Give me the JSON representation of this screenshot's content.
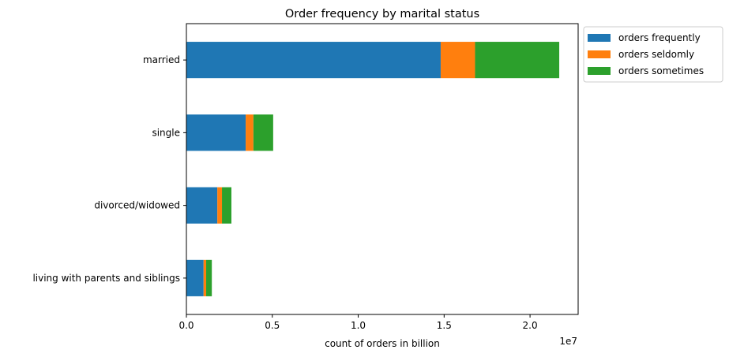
{
  "chart_data": {
    "type": "bar",
    "orientation": "horizontal",
    "stacked": true,
    "title": "Order frequency by marital status",
    "xlabel": "count of orders in billion",
    "ylabel": "",
    "x_offset_label": "1e7",
    "xlim": [
      0,
      2.28
    ],
    "x_ticks": [
      0.0,
      0.5,
      1.0,
      1.5,
      2.0
    ],
    "x_tick_labels": [
      "0.0",
      "0.5",
      "1.0",
      "1.5",
      "2.0"
    ],
    "categories": [
      "married",
      "single",
      "divorced/widowed",
      "living with parents and siblings"
    ],
    "series": [
      {
        "name": "orders frequently",
        "color": "#1f77b4",
        "values": [
          1.48,
          0.345,
          0.18,
          0.1
        ]
      },
      {
        "name": "orders seldomly",
        "color": "#ff7f0e",
        "values": [
          0.2,
          0.045,
          0.027,
          0.015
        ]
      },
      {
        "name": "orders sometimes",
        "color": "#2ca02c",
        "values": [
          0.49,
          0.115,
          0.055,
          0.033
        ]
      }
    ],
    "legend_position": "outside-top-right",
    "grid": false
  }
}
